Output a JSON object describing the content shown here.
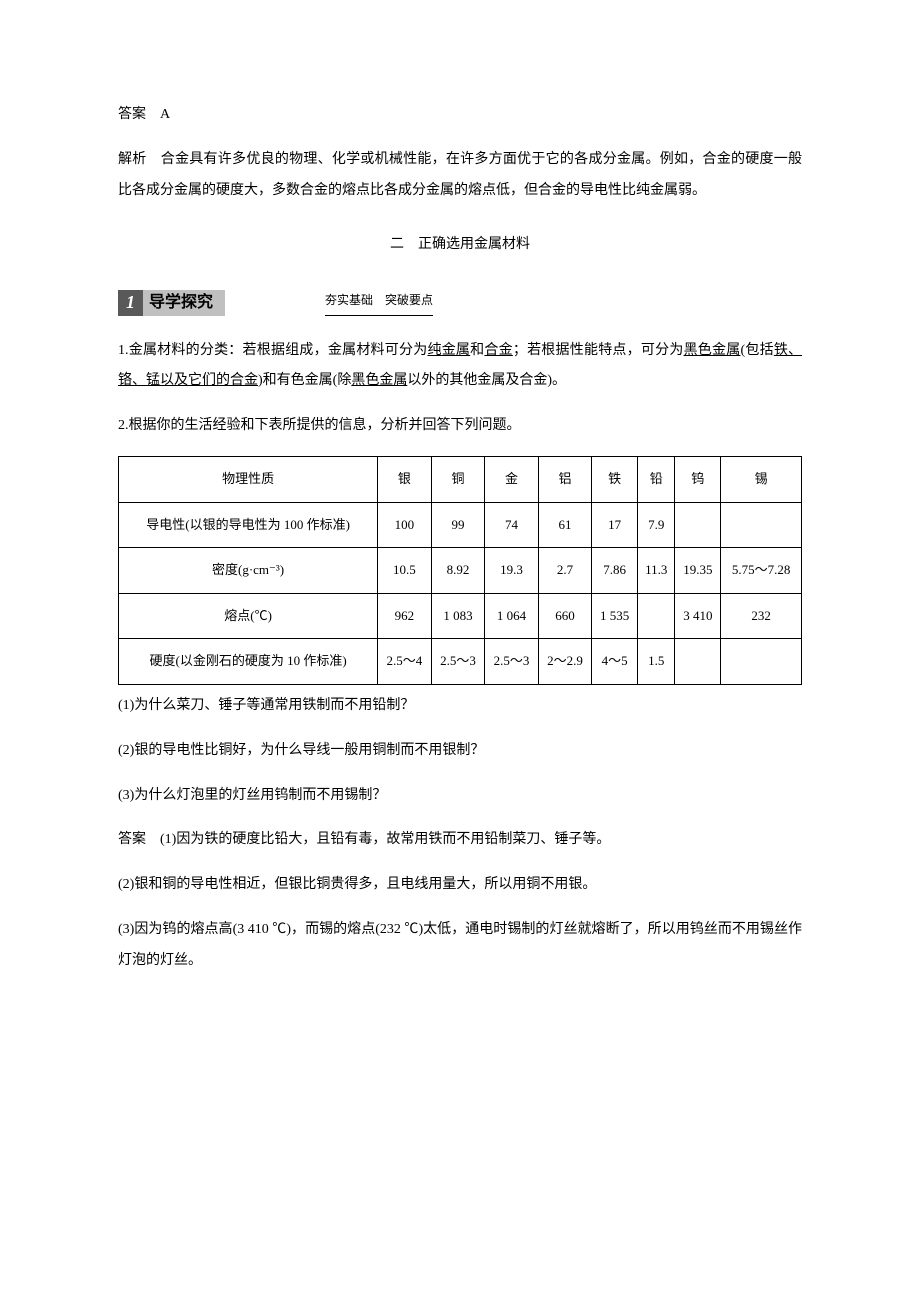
{
  "answer_label": "答案",
  "answer_value": "A",
  "explanation_label": "解析",
  "explanation_text": "合金具有许多优良的物理、化学或机械性能，在许多方面优于它的各成分金属。例如，合金的硬度一般比各成分金属的硬度大，多数合金的熔点比各成分金属的熔点低，但合金的导电性比纯金属弱。",
  "section_title": "二　正确选用金属材料",
  "inquiry_num": "1",
  "inquiry_label": "导学探究",
  "inquiry_sub": "夯实基础　突破要点",
  "para1_prefix": "1.金属材料的分类：若根据组成，金属材料可分为",
  "para1_u1": "纯金属",
  "para1_m1": "和",
  "para1_u2": "合金",
  "para1_m2": "；若根据性能特点，可分为",
  "para1_u3": "黑色金属",
  "para1_m3": "(包括",
  "para1_u4": "铁、铬、锰以及它们的合金",
  "para1_m4": ")和有色金属(除",
  "para1_u5": "黑色金属",
  "para1_suffix": "以外的其他金属及合金)。",
  "para2": "2.根据你的生活经验和下表所提供的信息，分析并回答下列问题。",
  "table": {
    "header": [
      "物理性质",
      "银",
      "铜",
      "金",
      "铝",
      "铁",
      "铅",
      "钨",
      "锡"
    ],
    "rows": [
      [
        "导电性(以银的导电性为 100 作标准)",
        "100",
        "99",
        "74",
        "61",
        "17",
        "7.9",
        "",
        ""
      ],
      [
        "密度(g·cm⁻³)",
        "10.5",
        "8.92",
        "19.3",
        "2.7",
        "7.86",
        "11.3",
        "19.35",
        "5.75～7.28"
      ],
      [
        "熔点(℃)",
        "962",
        "1 083",
        "1 064",
        "660",
        "1 535",
        "",
        "3 410",
        "232"
      ],
      [
        "硬度(以金刚石的硬度为 10 作标准)",
        "2.5～4",
        "2.5～3",
        "2.5～3",
        "2～2.9",
        "4～5",
        "1.5",
        "",
        ""
      ]
    ]
  },
  "q1": "(1)为什么菜刀、锤子等通常用铁制而不用铅制？",
  "q2": "(2)银的导电性比铜好，为什么导线一般用铜制而不用银制？",
  "q3": "(3)为什么灯泡里的灯丝用钨制而不用锡制？",
  "ans_label": "答案",
  "a1": "(1)因为铁的硬度比铅大，且铅有毒，故常用铁而不用铅制菜刀、锤子等。",
  "a2": "(2)银和铜的导电性相近，但银比铜贵得多，且电线用量大，所以用铜不用银。",
  "a3": "(3)因为钨的熔点高(3 410 ℃)，而锡的熔点(232 ℃)太低，通电时锡制的灯丝就熔断了，所以用钨丝而不用锡丝作灯泡的灯丝。"
}
